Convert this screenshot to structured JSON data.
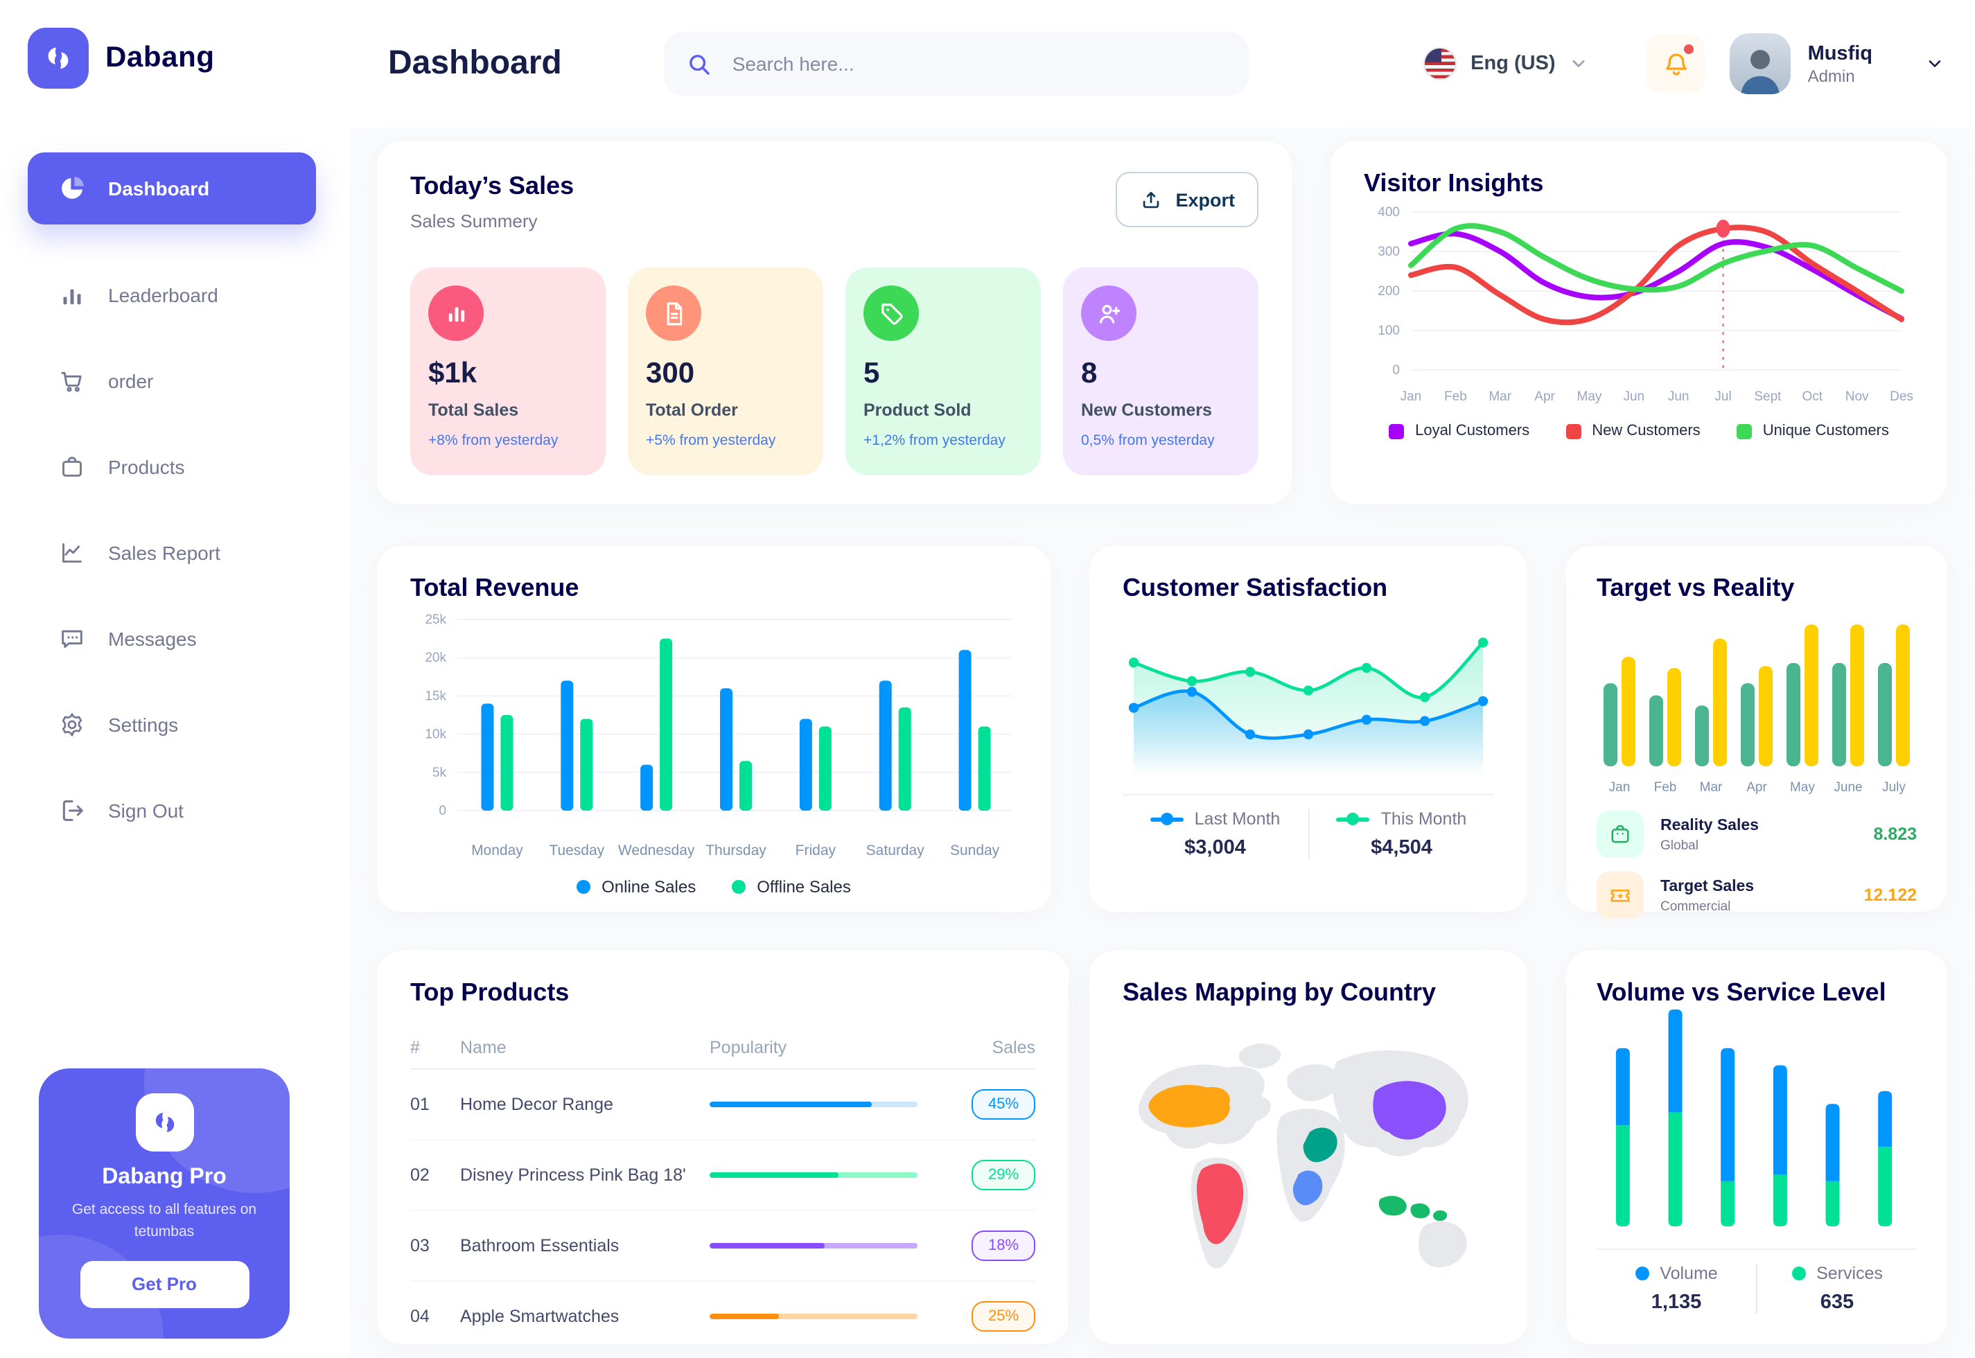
{
  "app": {
    "brand": "Dabang"
  },
  "colors": {
    "primary": "#5D5FEF",
    "heading": "#05004E",
    "title": "#151D48",
    "muted": "#737791",
    "axis": "#7B91B0",
    "grid": "#EEF0F5",
    "delta_blue": "#4079ED"
  },
  "header": {
    "title": "Dashboard",
    "search_placeholder": "Search here...",
    "language": "Eng (US)",
    "user": {
      "name": "Musfiq",
      "role": "Admin"
    }
  },
  "sidebar": {
    "items": [
      {
        "label": "Dashboard",
        "icon": "dashboard-pie",
        "active": true
      },
      {
        "label": "Leaderboard",
        "icon": "leaderboard-bars",
        "active": false
      },
      {
        "label": "order",
        "icon": "cart",
        "active": false
      },
      {
        "label": "Products",
        "icon": "bag",
        "active": false
      },
      {
        "label": "Sales Report",
        "icon": "line-chart",
        "active": false
      },
      {
        "label": "Messages",
        "icon": "message",
        "active": false
      },
      {
        "label": "Settings",
        "icon": "gear",
        "active": false
      },
      {
        "label": "Sign Out",
        "icon": "sign-out",
        "active": false
      }
    ],
    "pro": {
      "title": "Dabang Pro",
      "subtitle": "Get access to all features on tetumbas",
      "button": "Get Pro"
    }
  },
  "today_sales": {
    "title": "Today’s Sales",
    "subtitle": "Sales Summery",
    "export_label": "Export",
    "stats": [
      {
        "value": "$1k",
        "label": "Total Sales",
        "delta": "+8% from yesterday",
        "bg": "#FFE2E5",
        "icon_bg": "#FA5A7D",
        "icon": "stat-bar-chart"
      },
      {
        "value": "300",
        "label": "Total Order",
        "delta": "+5% from yesterday",
        "bg": "#FFF4DE",
        "icon_bg": "#FF947A",
        "icon": "stat-file"
      },
      {
        "value": "5",
        "label": "Product Sold",
        "delta": "+1,2% from yesterday",
        "bg": "#DCFCE7",
        "icon_bg": "#3CD856",
        "icon": "stat-tag"
      },
      {
        "value": "8",
        "label": "New Customers",
        "delta": "0,5% from yesterday",
        "bg": "#F3E8FF",
        "icon_bg": "#BF83FF",
        "icon": "stat-user-plus"
      }
    ]
  },
  "chart_data": [
    {
      "id": "visitor_insights",
      "type": "line",
      "title": "Visitor Insights",
      "x": [
        "Jan",
        "Feb",
        "Mar",
        "Apr",
        "May",
        "Jun",
        "Jun",
        "Jul",
        "Sept",
        "Oct",
        "Nov",
        "Des"
      ],
      "ylim": [
        0,
        400
      ],
      "yticks": [
        "0",
        "100",
        "200",
        "300",
        "400"
      ],
      "grid": true,
      "highlight": {
        "series": "New Customers",
        "index": 7,
        "style": "dashed-vertical-line-with-dot",
        "color": "#F64E60"
      },
      "series": [
        {
          "name": "Loyal Customers",
          "color": "#A700FF",
          "values": [
            320,
            345,
            300,
            220,
            185,
            195,
            250,
            320,
            310,
            255,
            190,
            130
          ]
        },
        {
          "name": "New Customers",
          "color": "#EF4444",
          "values": [
            240,
            260,
            190,
            128,
            130,
            200,
            315,
            358,
            348,
            270,
            200,
            128
          ]
        },
        {
          "name": "Unique Customers",
          "color": "#3CD856",
          "values": [
            265,
            358,
            350,
            285,
            230,
            205,
            212,
            270,
            302,
            315,
            258,
            200
          ]
        }
      ],
      "legend_position": "bottom"
    },
    {
      "id": "total_revenue",
      "type": "bar",
      "title": "Total Revenue",
      "categories": [
        "Monday",
        "Tuesday",
        "Wednesday",
        "Thursday",
        "Friday",
        "Saturday",
        "Sunday"
      ],
      "ylim": [
        0,
        25000
      ],
      "yticks": [
        "0",
        "5k",
        "10k",
        "15k",
        "20k",
        "25k"
      ],
      "grid": true,
      "series": [
        {
          "name": "Online Sales",
          "color": "#0095FF",
          "values": [
            14000,
            17000,
            6000,
            16000,
            12000,
            17000,
            21000
          ]
        },
        {
          "name": "Offline Sales",
          "color": "#00E096",
          "values": [
            12500,
            12000,
            22500,
            6500,
            11000,
            13500,
            11000
          ]
        }
      ],
      "legend_position": "bottom"
    },
    {
      "id": "customer_satisfaction",
      "type": "area",
      "title": "Customer Satisfaction",
      "x": [
        1,
        2,
        3,
        4,
        5,
        6,
        7
      ],
      "ylim": [
        0,
        100
      ],
      "grid": false,
      "series": [
        {
          "name": "Last Month",
          "color": "#0095FF",
          "total": "$3,004",
          "values": [
            44,
            56,
            24,
            24,
            35,
            34,
            49
          ]
        },
        {
          "name": "This Month",
          "color": "#07E098",
          "total": "$4,504",
          "values": [
            78,
            64,
            71,
            57,
            74,
            52,
            93
          ]
        }
      ],
      "legend_position": "bottom"
    },
    {
      "id": "target_vs_reality",
      "type": "bar",
      "title": "Target vs Reality",
      "categories": [
        "Jan",
        "Feb",
        "Mar",
        "Apr",
        "May",
        "June",
        "July"
      ],
      "ylim": [
        0,
        14.5
      ],
      "grid": false,
      "series": [
        {
          "name": "Reality Sales",
          "scope": "Global",
          "color": "#4AB58E",
          "value_label": "8.823",
          "value_color": "#27AE60",
          "tile_bg": "#E2FFF3",
          "icon": "bag-green",
          "values": [
            8.2,
            7.0,
            6.0,
            8.2,
            10.2,
            10.2,
            10.2
          ]
        },
        {
          "name": "Target Sales",
          "scope": "Commercial",
          "color": "#FFCF00",
          "value_label": "12.122",
          "value_color": "#FFA412",
          "tile_bg": "#FFF1DD",
          "icon": "ticket-orange",
          "values": [
            10.8,
            9.7,
            12.6,
            9.9,
            14.0,
            14.0,
            14.0
          ]
        }
      ],
      "legend_position": "bottom-list"
    },
    {
      "id": "volume_vs_service",
      "type": "stacked-bar",
      "title": "Volume vs Service Level",
      "categories": [
        "1",
        "2",
        "3",
        "4",
        "5",
        "6"
      ],
      "grid": false,
      "series": [
        {
          "name": "Volume",
          "color": "#0095FF",
          "total": "1,135",
          "values": [
            36,
            48,
            62,
            51,
            36,
            26
          ]
        },
        {
          "name": "Services",
          "color": "#00E096",
          "total": "635",
          "values": [
            47,
            53,
            21,
            24,
            21,
            37
          ]
        }
      ],
      "legend_position": "bottom"
    }
  ],
  "top_products": {
    "title": "Top Products",
    "columns": [
      "#",
      "Name",
      "Popularity",
      "Sales"
    ],
    "rows": [
      {
        "num": "01",
        "name": "Home Decor Range",
        "popularity": 78,
        "color": "#0095FF",
        "track": "#CDE7FF",
        "badge_bg": "#F0F9FF",
        "sales": "45%"
      },
      {
        "num": "02",
        "name": "Disney Princess Pink Bag 18'",
        "popularity": 62,
        "color": "#00E096",
        "track": "#8CFAC7",
        "badge_bg": "#F0FDF6",
        "sales": "29%"
      },
      {
        "num": "03",
        "name": "Bathroom Essentials",
        "popularity": 55,
        "color": "#884DFF",
        "track": "#C5A8FF",
        "badge_bg": "#F7F2FF",
        "sales": "18%"
      },
      {
        "num": "04",
        "name": "Apple Smartwatches",
        "popularity": 33,
        "color": "#FF8F0D",
        "track": "#FFD5A4",
        "badge_bg": "#FFF8EE",
        "sales": "25%"
      }
    ]
  },
  "sales_map": {
    "title": "Sales Mapping by Country",
    "land_color": "#E6E8EC",
    "countries": [
      {
        "name": "United States",
        "color": "#FFA412"
      },
      {
        "name": "Brazil",
        "color": "#F64E60"
      },
      {
        "name": "China",
        "color": "#8950FC"
      },
      {
        "name": "Saudi Arabia",
        "color": "#00A389"
      },
      {
        "name": "DR Congo",
        "color": "#5A8CF8"
      },
      {
        "name": "Indonesia",
        "color": "#16BA69"
      }
    ]
  }
}
